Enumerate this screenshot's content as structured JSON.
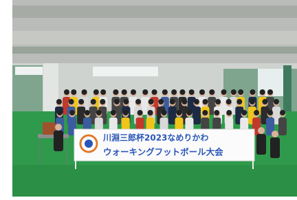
{
  "banner": {
    "line1": "川淵三郎杯2023なめりかわ",
    "line2": "ウォーキングフットボール大会"
  }
}
